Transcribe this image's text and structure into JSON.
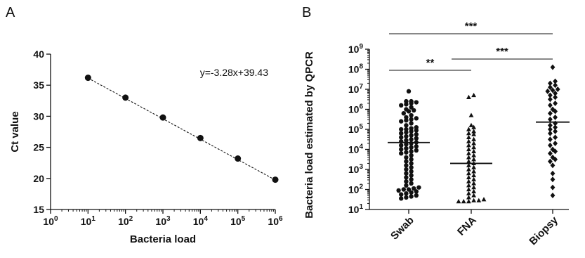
{
  "chart_data": [
    {
      "type": "scatter",
      "panel": "A",
      "title": "",
      "xlabel": "Bacteria load",
      "ylabel": "Ct value",
      "xscale": "log",
      "xlim": [
        1,
        1000000
      ],
      "ylim": [
        15,
        40
      ],
      "x_tick_exponents": [
        0,
        1,
        2,
        3,
        4,
        5,
        6
      ],
      "y_ticks": [
        15,
        20,
        25,
        30,
        35,
        40
      ],
      "points": [
        {
          "x": 10,
          "y": 36.2
        },
        {
          "x": 100,
          "y": 33.0
        },
        {
          "x": 1000,
          "y": 29.8
        },
        {
          "x": 10000,
          "y": 26.5
        },
        {
          "x": 100000,
          "y": 23.2
        },
        {
          "x": 1000000,
          "y": 19.8
        }
      ],
      "fit_line": {
        "slope": -3.28,
        "intercept": 39.43,
        "x_range": [
          10,
          1000000
        ],
        "style": "dashed"
      },
      "equation_label": "y=-3.28x+39.43",
      "grid": false
    },
    {
      "type": "scatter",
      "panel": "B",
      "title": "",
      "xlabel": "",
      "ylabel": "Bacteria load estimated by QPCR",
      "yscale": "log",
      "ylim": [
        10,
        1000000000
      ],
      "y_tick_exponents": [
        1,
        2,
        3,
        4,
        5,
        6,
        7,
        8,
        9
      ],
      "categories": [
        "Swab",
        "FNA",
        "Biopsy"
      ],
      "markers": [
        "circle",
        "triangle",
        "diamond"
      ],
      "medians": [
        22000,
        2000,
        230000
      ],
      "groups": [
        {
          "category": "Swab",
          "marker": "circle",
          "log10_values": [
            6.9,
            6.4,
            6.4,
            6.35,
            6.3,
            6.25,
            6.2,
            6.1,
            6.0,
            5.95,
            5.9,
            5.8,
            5.7,
            5.6,
            5.55,
            5.5,
            5.45,
            5.4,
            5.3,
            5.2,
            5.1,
            5.05,
            5.0,
            5.0,
            4.95,
            4.9,
            4.85,
            4.8,
            4.75,
            4.7,
            4.65,
            4.6,
            4.55,
            4.5,
            4.45,
            4.4,
            4.35,
            4.3,
            4.25,
            4.2,
            4.15,
            4.1,
            4.05,
            4.0,
            3.95,
            3.9,
            3.85,
            3.8,
            3.7,
            3.6,
            3.5,
            3.4,
            3.3,
            3.2,
            3.1,
            3.0,
            2.9,
            2.8,
            2.7,
            2.6,
            2.5,
            2.4,
            2.3,
            2.2,
            2.1,
            2.05,
            2.0,
            2.0,
            1.95,
            1.9,
            1.85,
            1.8,
            1.75,
            1.7,
            1.65,
            1.6,
            1.55
          ]
        },
        {
          "category": "FNA",
          "marker": "triangle",
          "log10_values": [
            6.7,
            6.6,
            5.7,
            5.2,
            5.1,
            5.0,
            4.9,
            4.8,
            4.75,
            4.6,
            4.5,
            4.4,
            4.3,
            4.2,
            4.1,
            4.0,
            3.9,
            3.8,
            3.7,
            3.6,
            3.5,
            3.4,
            3.3,
            3.2,
            3.1,
            3.0,
            2.9,
            2.8,
            2.7,
            2.6,
            2.5,
            2.4,
            2.3,
            2.2,
            2.1,
            2.0,
            1.9,
            1.8,
            1.7,
            1.6,
            1.5,
            1.45,
            1.45,
            1.4,
            1.4,
            1.4
          ]
        },
        {
          "category": "Biopsy",
          "marker": "diamond",
          "log10_values": [
            8.1,
            7.4,
            7.3,
            7.2,
            7.1,
            7.0,
            6.95,
            6.9,
            6.8,
            6.7,
            6.6,
            6.5,
            6.3,
            6.2,
            6.0,
            5.9,
            5.8,
            5.6,
            5.5,
            5.3,
            5.2,
            5.1,
            5.0,
            4.9,
            4.8,
            4.6,
            4.5,
            4.3,
            4.2,
            4.0,
            3.9,
            3.8,
            3.6,
            3.5,
            3.4,
            3.2,
            2.8,
            2.5,
            2.1,
            1.7
          ]
        }
      ],
      "significance": [
        {
          "from": "Swab",
          "to": "Biopsy",
          "label": "***"
        },
        {
          "from": "Swab",
          "to": "FNA",
          "label": "**"
        },
        {
          "from": "FNA",
          "to": "Biopsy",
          "label": "***"
        }
      ],
      "grid": false
    }
  ],
  "labels": {
    "panel_a": "A",
    "panel_b": "B"
  }
}
